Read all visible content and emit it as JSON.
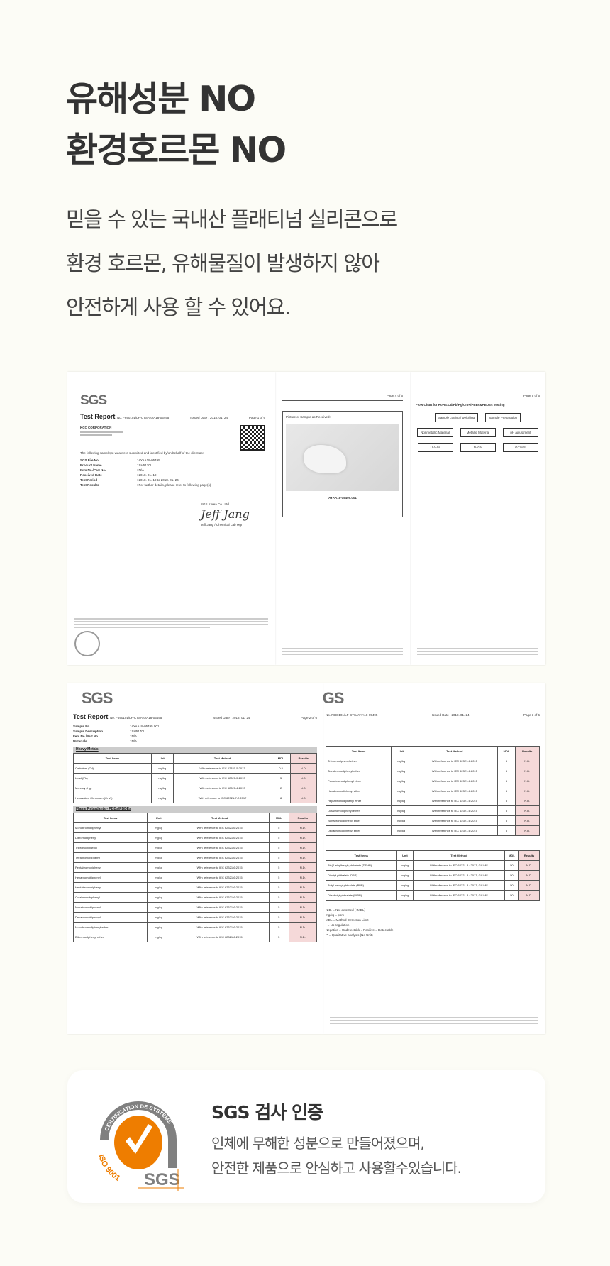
{
  "headline": {
    "line1": "유해성분 NO",
    "line2": "환경호르몬 NO"
  },
  "description": {
    "line1": "믿을 수 있는 국내산 플래티넘 실리콘으로",
    "line2": "환경 호르몬, 유해물질이 발생하지 않아",
    "line3": "안전하게 사용 할 수 있어요."
  },
  "documents": {
    "logo": "SGS",
    "title": "Test Report",
    "report_no": "No. F690101/LF-CTSAYAA18-05495",
    "issued_date": "Issued Date : 2018. 01. 24",
    "page1": {
      "page": "Page 1 of 6",
      "company": "KCC CORPORATION",
      "intro": "The following sample(s) was/were submitted and identified by/on behalf of the client as:",
      "fields": [
        {
          "label": "SGS File No.",
          "value": ": AYAA18-05495"
        },
        {
          "label": "Product Name",
          "value": ": SH5170U"
        },
        {
          "label": "Item No./Part No.",
          "value": ": N/A"
        },
        {
          "label": "Received Date",
          "value": ": 2018. 01. 19"
        },
        {
          "label": "Test Period",
          "value": ": 2018. 01. 19  to  2018. 01. 24"
        },
        {
          "label": "Test Results",
          "value": ": For further details, please refer to following page(s)"
        }
      ],
      "signer_company": "SGS Korea Co., Ltd.",
      "signer": "Jeff Jang / Chemical Lab Mgr"
    },
    "page4": {
      "page": "Page 4 of 6",
      "caption": "Picture of Sample as Received:",
      "sample_id": "AYAA18-05495.001"
    },
    "page5": {
      "page": "Page 5 of 6",
      "title": "Flow Chart for RoHS:Cd/Pb/Hg/Cr6+/PBBs&PBDEs Testing",
      "steps": [
        "Sample cutting / weighing",
        "Sample Preparation",
        "Nonmetallic Material",
        "Metallic Material",
        "pH adjustment",
        "UV-Vis",
        "DATA",
        "GC/MS"
      ]
    },
    "page2": {
      "page": "Page 2 of 6",
      "fields": [
        {
          "label": "Sample No.",
          "value": ": AYAA18-05495.001"
        },
        {
          "label": "Sample Description",
          "value": ": SH5170U"
        },
        {
          "label": "Item No./Part No.",
          "value": ": N/A"
        },
        {
          "label": "Materials",
          "value": ": N/A"
        }
      ],
      "section1": "Heavy Metals",
      "headers": [
        "Test Items",
        "Unit",
        "Test Method",
        "MDL",
        "Results"
      ],
      "rows1": [
        [
          "Cadmium (Cd)",
          "mg/kg",
          "With reference to IEC 62321-5:2013",
          "0.5",
          "N.D."
        ],
        [
          "Lead (Pb)",
          "mg/kg",
          "With reference to IEC 62321-5:2013",
          "5",
          "N.D."
        ],
        [
          "Mercury (Hg)",
          "mg/kg",
          "With reference to IEC 62321-4:2013",
          "2",
          "N.D."
        ],
        [
          "Hexavalent Chromium (Cr VI)",
          "mg/kg",
          "With reference to IEC 62321-7-2:2017",
          "8",
          "N.D."
        ]
      ],
      "section2": "Flame Retardants - PBBs/PBDEs",
      "rows2": [
        [
          "Monobromobiphenyl",
          "mg/kg",
          "With reference to IEC 62321-6:2015",
          "5",
          "N.D."
        ],
        [
          "Dibromobiphenyl",
          "mg/kg",
          "With reference to IEC 62321-6:2015",
          "5",
          "N.D."
        ],
        [
          "Tribromobiphenyl",
          "mg/kg",
          "With reference to IEC 62321-6:2015",
          "5",
          "N.D."
        ],
        [
          "Tetrabromobiphenyl",
          "mg/kg",
          "With reference to IEC 62321-6:2015",
          "5",
          "N.D."
        ],
        [
          "Pentabromobiphenyl",
          "mg/kg",
          "With reference to IEC 62321-6:2015",
          "5",
          "N.D."
        ],
        [
          "Hexabromobiphenyl",
          "mg/kg",
          "With reference to IEC 62321-6:2015",
          "5",
          "N.D."
        ],
        [
          "Heptabromobiphenyl",
          "mg/kg",
          "With reference to IEC 62321-6:2015",
          "5",
          "N.D."
        ],
        [
          "Octabromobiphenyl",
          "mg/kg",
          "With reference to IEC 62321-6:2015",
          "5",
          "N.D."
        ],
        [
          "Nonabromobiphenyl",
          "mg/kg",
          "With reference to IEC 62321-6:2015",
          "5",
          "N.D."
        ],
        [
          "Decabromobiphenyl",
          "mg/kg",
          "With reference to IEC 62321-6:2015",
          "5",
          "N.D."
        ],
        [
          "Monobromodiphenyl ether",
          "mg/kg",
          "With reference to IEC 62321-6:2015",
          "5",
          "N.D."
        ],
        [
          "Dibromodiphenyl ether",
          "mg/kg",
          "With reference to IEC 62321-6:2015",
          "5",
          "N.D."
        ]
      ]
    },
    "page3": {
      "page": "Page 3 of 6",
      "rows1": [
        [
          "Tribromodiphenyl ether",
          "mg/kg",
          "With reference to IEC 62321-6:2015",
          "5",
          "N.D."
        ],
        [
          "Tetrabromodiphenyl ether",
          "mg/kg",
          "With reference to IEC 62321-6:2015",
          "5",
          "N.D."
        ],
        [
          "Pentabromodiphenyl ether",
          "mg/kg",
          "With reference to IEC 62321-6:2015",
          "5",
          "N.D."
        ],
        [
          "Hexabromodiphenyl ether",
          "mg/kg",
          "With reference to IEC 62321-6:2015",
          "5",
          "N.D."
        ],
        [
          "Heptabromodiphenyl ether",
          "mg/kg",
          "With reference to IEC 62321-6:2015",
          "5",
          "N.D."
        ],
        [
          "Octabromodiphenyl ether",
          "mg/kg",
          "With reference to IEC 62321-6:2015",
          "5",
          "N.D."
        ],
        [
          "Nonabromodiphenyl ether",
          "mg/kg",
          "With reference to IEC 62321-6:2015",
          "5",
          "N.D."
        ],
        [
          "Decabromodiphenyl ether",
          "mg/kg",
          "With reference to IEC 62321-6:2015",
          "5",
          "N.D."
        ]
      ],
      "rows2": [
        [
          "Bis(2-ethylhexyl) phthalate (DEHP)",
          "mg/kg",
          "With reference to IEC 62321-8 : 2017, GC/MS",
          "50",
          "N.D."
        ],
        [
          "Dibutyl phthalate (DBP)",
          "mg/kg",
          "With reference to IEC 62321-8 : 2017, GC/MS",
          "50",
          "N.D."
        ],
        [
          "Butyl benzyl phthalate (BBP)",
          "mg/kg",
          "With reference to IEC 62321-8 : 2017, GC/MS",
          "50",
          "N.D."
        ],
        [
          "Diisobutyl phthalate (DIBP)",
          "mg/kg",
          "With reference to IEC 62321-8 : 2017, GC/MS",
          "50",
          "N.D."
        ]
      ],
      "notes": [
        "N.D. = Not detected (<MDL)",
        "mg/kg = ppm",
        "MDL = Method Detection Limit",
        "- = No regulation",
        "Negative = Undetectable / Positive = Detectable",
        "** = Qualitative analysis (No Unit)"
      ]
    }
  },
  "certification": {
    "title": "SGS 검사 인증",
    "desc_line1": "인체에 무해한 성분으로 만들어졌으며,",
    "desc_line2": "안전한 제품으로 안심하고 사용할수있습니다.",
    "logo_arc_text": "CERTIFICATION DE SYSTEME",
    "logo_iso_text": "ISO 9001",
    "logo_brand": "SGS",
    "colors": {
      "orange": "#ee7d00",
      "gray": "#7f7f7f"
    }
  }
}
